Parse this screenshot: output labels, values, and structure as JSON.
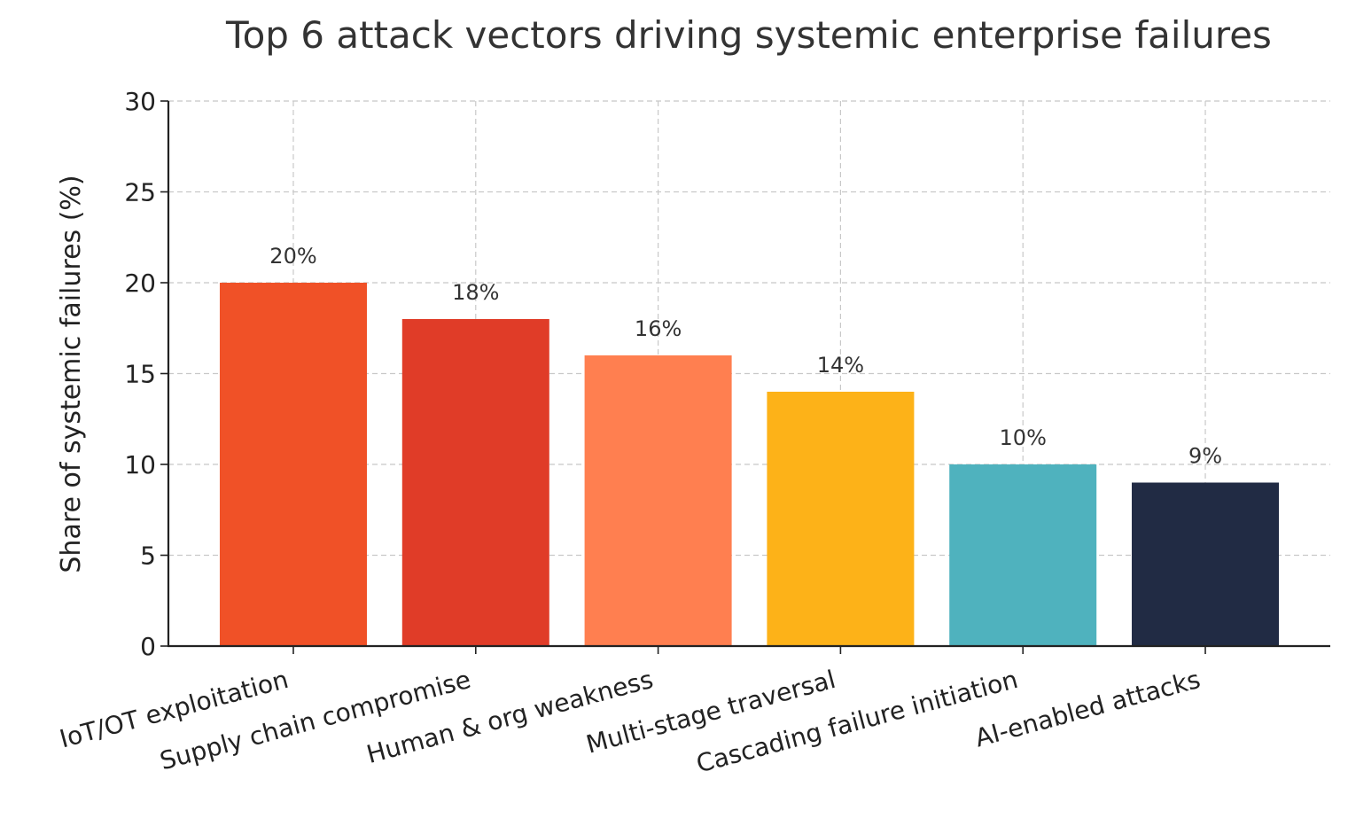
{
  "chart_data": {
    "type": "bar",
    "title": "Top 6 attack vectors driving systemic enterprise failures",
    "xlabel": "",
    "ylabel": "Share of systemic failures (%)",
    "categories": [
      "IoT/OT exploitation",
      "Supply chain compromise",
      "Human & org weakness",
      "Multi-stage traversal",
      "Cascading failure initiation",
      "AI-enabled attacks"
    ],
    "values": [
      20,
      18,
      16,
      14,
      10,
      9
    ],
    "data_labels": [
      "20%",
      "18%",
      "16%",
      "14%",
      "10%",
      "9%"
    ],
    "colors": [
      "#f05127",
      "#e03c28",
      "#ff7f50",
      "#fdb218",
      "#4fb2be",
      "#212b44"
    ],
    "ylim": [
      0,
      30
    ],
    "yticks": [
      0,
      5,
      10,
      15,
      20,
      25,
      30
    ],
    "grid": true
  }
}
